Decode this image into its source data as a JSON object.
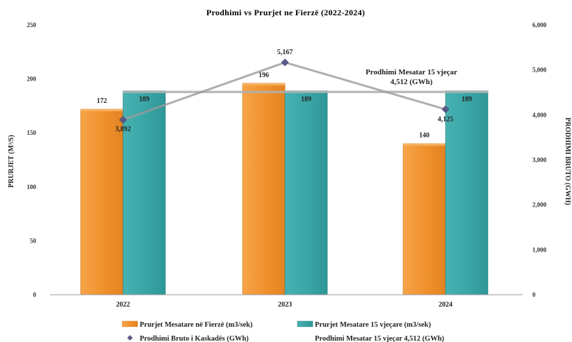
{
  "chart_data": {
    "type": "bar",
    "title": "Prodhimi vs Prurjet ne Fierzë (2022-2024)",
    "categories": [
      "2022",
      "2023",
      "2024"
    ],
    "ylabel_left": "PRURJET (M³/S)",
    "ylabel_right": "PRODHIMI BRUTO (GWH)",
    "ylim_left": [
      0,
      250
    ],
    "yticks_left": [
      "0",
      "50",
      "100",
      "150",
      "200",
      "250"
    ],
    "ylim_right": [
      0,
      6000
    ],
    "yticks_right": [
      "0",
      "1,000",
      "2,000",
      "3,000",
      "4,000",
      "5,000",
      "6,000"
    ],
    "grid": false,
    "legend_position": "bottom",
    "series": [
      {
        "name": "Prurjet Mesatare në Fierzë (m3/sek)",
        "kind": "bar",
        "axis": "left",
        "color": "#f0922e",
        "values": [
          172,
          196,
          140
        ],
        "labels": [
          "172",
          "196",
          "140"
        ]
      },
      {
        "name": "Prurjet Mesatare 15 vjeçare (m3/sek)",
        "kind": "bar",
        "axis": "left",
        "color": "#3aa6a6",
        "values": [
          189,
          189,
          189
        ],
        "labels": [
          "189",
          "189",
          "189"
        ]
      },
      {
        "name": "Prodhimi Bruto i Kaskadës (GWh)",
        "kind": "line",
        "axis": "right",
        "color": "#5a5a8a",
        "values": [
          3892,
          5167,
          4125
        ],
        "labels": [
          "3,892",
          "5,167",
          "4,125"
        ]
      },
      {
        "name": "Prodhimi Mesatar 15 vjeçar 4,512 (GWh)",
        "kind": "reference-line",
        "axis": "right",
        "color": "#b5b5b5",
        "value": 4512
      }
    ],
    "annotation": {
      "line1": "Prodhimi Mesatar 15 vjeçar",
      "line2": "4,512 (GWh)"
    }
  }
}
